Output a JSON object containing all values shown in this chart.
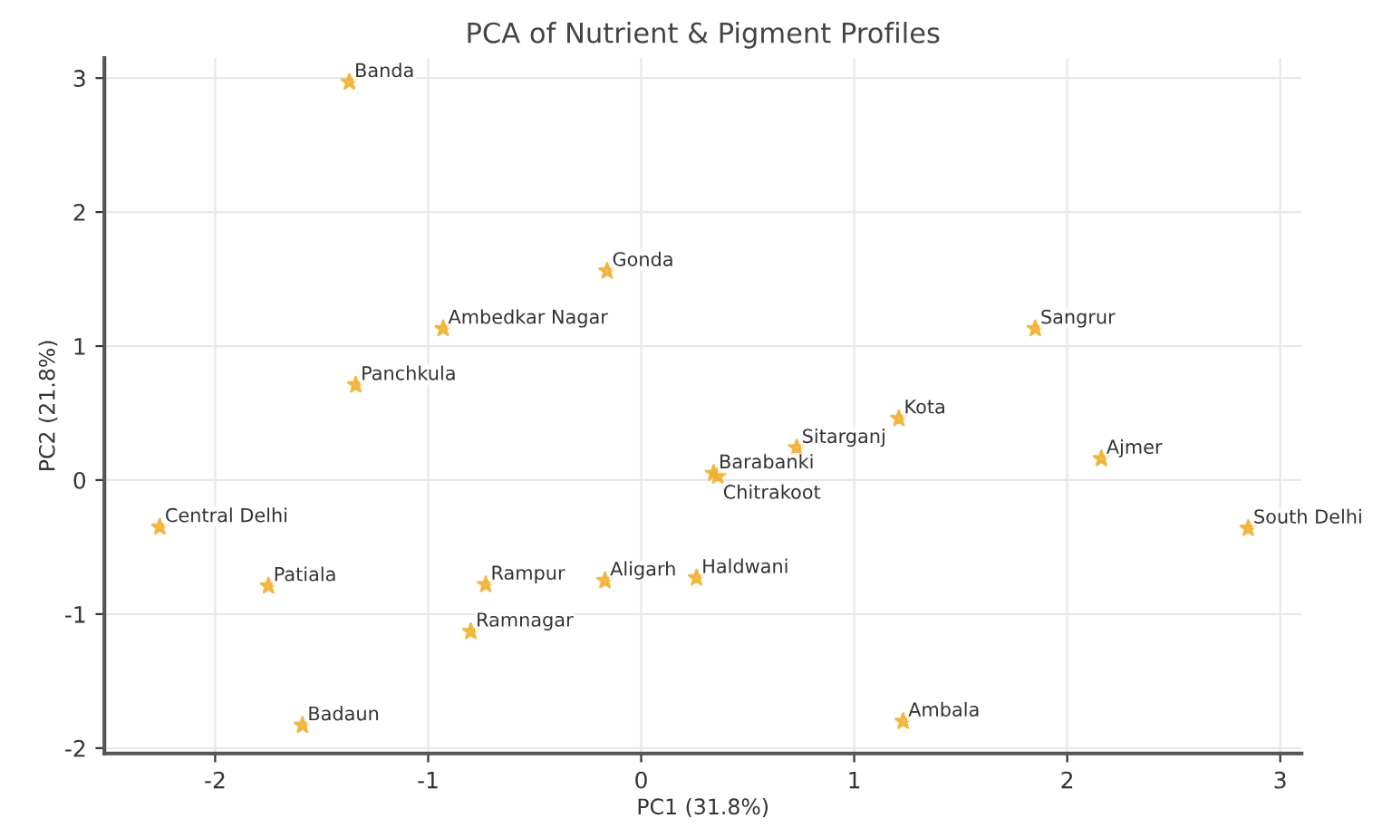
{
  "chart_data": {
    "type": "scatter",
    "title": "PCA of Nutrient & Pigment Profiles",
    "xlabel": "PC1 (31.8%)",
    "ylabel": "PC2 (21.8%)",
    "x": [
      -1.37,
      -0.16,
      -0.93,
      -1.34,
      1.85,
      1.21,
      0.73,
      0.34,
      0.36,
      2.16,
      2.85,
      -2.26,
      -1.75,
      -0.73,
      -0.17,
      0.26,
      -0.8,
      -1.59,
      1.23
    ],
    "series": [
      {
        "color": "#f0b030",
        "values": [
          2.97,
          1.56,
          1.13,
          0.71,
          1.13,
          0.46,
          0.24,
          0.05,
          0.03,
          0.16,
          -0.36,
          -0.35,
          -0.79,
          -0.78,
          -0.75,
          -0.73,
          -1.13,
          -1.83,
          -1.8
        ]
      }
    ],
    "annotations": [
      {
        "text": "Banda",
        "x": -1.37,
        "y": 2.97
      },
      {
        "text": "Gonda",
        "x": -0.16,
        "y": 1.56
      },
      {
        "text": "Ambedkar Nagar",
        "x": -0.93,
        "y": 1.13
      },
      {
        "text": "Panchkula",
        "x": -1.34,
        "y": 0.71
      },
      {
        "text": "Sangrur",
        "x": 1.85,
        "y": 1.13
      },
      {
        "text": "Kota",
        "x": 1.21,
        "y": 0.46
      },
      {
        "text": "Sitarganj",
        "x": 0.73,
        "y": 0.24
      },
      {
        "text": "Barabanki",
        "x": 0.34,
        "y": 0.05
      },
      {
        "text": "Chitrakoot",
        "x": 0.36,
        "y": 0.03
      },
      {
        "text": "Ajmer",
        "x": 2.16,
        "y": 0.16
      },
      {
        "text": "South Delhi",
        "x": 2.85,
        "y": -0.36
      },
      {
        "text": "Central Delhi",
        "x": -2.26,
        "y": -0.35
      },
      {
        "text": "Patiala",
        "x": -1.75,
        "y": -0.79
      },
      {
        "text": "Rampur",
        "x": -0.73,
        "y": -0.78
      },
      {
        "text": "Aligarh",
        "x": -0.17,
        "y": -0.75
      },
      {
        "text": "Haldwani",
        "x": 0.26,
        "y": -0.73
      },
      {
        "text": "Ramnagar",
        "x": -0.8,
        "y": -1.13
      },
      {
        "text": "Badaun",
        "x": -1.59,
        "y": -1.83
      },
      {
        "text": "Ambala",
        "x": 1.23,
        "y": -1.8
      }
    ],
    "xlim": [
      -2.52,
      3.1
    ],
    "ylim": [
      -2.04,
      3.15
    ],
    "xticks": [
      -2,
      -1,
      0,
      1,
      2,
      3
    ],
    "yticks": [
      -2,
      -1,
      0,
      1,
      2,
      3
    ],
    "grid": true,
    "marker": "star"
  }
}
